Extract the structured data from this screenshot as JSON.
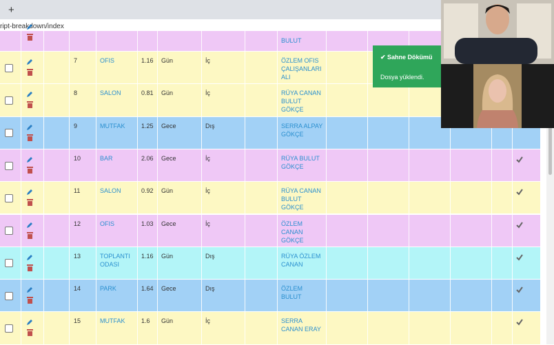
{
  "browser": {
    "new_tab": "+",
    "url": "ript-breakdown/index"
  },
  "toast": {
    "title": "Sahne Dökümü",
    "message": "Dosya yüklendi."
  },
  "table": {
    "rows": [
      {
        "cast": "BULUT",
        "color": "#efc8f6",
        "checked": false
      },
      {
        "no": 7,
        "location": "OFIS",
        "duration": 1.16,
        "time": "Gün",
        "setting": "İç",
        "cast": "ÖZLEM OFIS ÇALIŞANLARI ALI",
        "color": "#fdf8c3",
        "checked": false
      },
      {
        "no": 8,
        "location": "SALON",
        "duration": 0.81,
        "time": "Gün",
        "setting": "İç",
        "cast": "RÜYA CANAN BULUT GÖKÇE",
        "color": "#fdf8c3",
        "checked": false
      },
      {
        "no": 9,
        "location": "MUTFAK",
        "duration": 1.25,
        "time": "Gece",
        "setting": "Dış",
        "cast": "SERRA ALPAY GÖKÇE",
        "color": "#a2d1f6",
        "checked": false
      },
      {
        "no": 10,
        "location": "BAR",
        "duration": 2.06,
        "time": "Gece",
        "setting": "İç",
        "cast": "RÜYA BULUT GÖKÇE",
        "color": "#efc8f6",
        "checked": true
      },
      {
        "no": 11,
        "location": "SALON",
        "duration": 0.92,
        "time": "Gün",
        "setting": "İç",
        "cast": "RÜYA CANAN BULUT GÖKÇE",
        "color": "#fdf8c3",
        "checked": true
      },
      {
        "no": 12,
        "location": "OFIS",
        "duration": 1.03,
        "time": "Gece",
        "setting": "İç",
        "cast": "ÖZLEM CANAN GÖKÇE",
        "color": "#efc8f6",
        "checked": true
      },
      {
        "no": 13,
        "location": "TOPLANTI ODASI",
        "duration": 1.16,
        "time": "Gün",
        "setting": "Dış",
        "cast": "RÜYA ÖZLEM CANAN",
        "color": "#b3f5f8",
        "checked": true
      },
      {
        "no": 14,
        "location": "PARK",
        "duration": 1.64,
        "time": "Gece",
        "setting": "Dış",
        "cast": "ÖZLEM BULUT",
        "color": "#a2d1f6",
        "checked": true
      },
      {
        "no": 15,
        "location": "MUTFAK",
        "duration": 1.6,
        "time": "Gün",
        "setting": "İç",
        "cast": "SERRA CANAN ERAY",
        "color": "#fdf8c3",
        "checked": true
      }
    ]
  }
}
